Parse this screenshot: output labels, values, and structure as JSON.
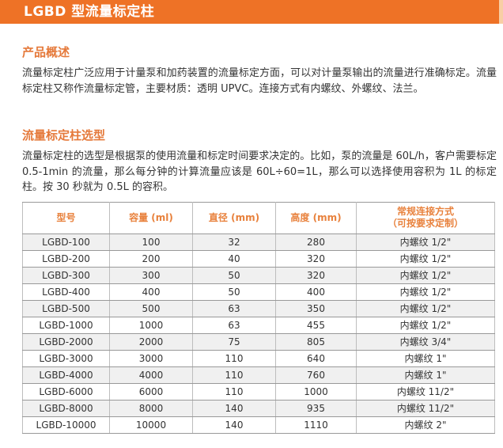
{
  "page": {
    "title": "LGBD 型流量标定柱"
  },
  "colors": {
    "accent": "#EE7226",
    "accent_light_stripe": "#F8CEA4",
    "section_heading": "#E5793A",
    "table_header_text": "#E8813C",
    "body_text": "#333333",
    "row_stripe": "#F0F0F0"
  },
  "sections": {
    "overview": {
      "heading": "产品概述",
      "body": "流量标定柱广泛应用于计量泵和加药装置的流量标定方面，可以对计量泵输出的流量进行准确标定。流量标定柱又称作流量标定管，主要材质：透明 UPVC。连接方式有内螺纹、外螺纹、法兰。"
    },
    "selection": {
      "heading": "流量标定柱选型",
      "body": "流量标定柱的选型是根据泵的使用流量和标定时间要求决定的。比如，泵的流量是 60L/h，客户需要标定 0.5-1min 的流量，那么每分钟的计算流量应该是 60L÷60=1L，那么可以选择使用容积为 1L 的标定柱。按 30 秒就为 0.5L 的容积。"
    }
  },
  "table": {
    "col_keys": [
      "model",
      "capacity_ml",
      "diameter_mm",
      "height_mm",
      "connection"
    ],
    "headers": [
      {
        "label": "型号"
      },
      {
        "label": "容量 (ml)"
      },
      {
        "label": "直径 (mm)"
      },
      {
        "label": "高度 (mm)"
      },
      {
        "label": "常规连接方式",
        "sub": "（可按要求定制）"
      }
    ],
    "rows": [
      [
        "LGBD-100",
        "100",
        "32",
        "280",
        "内螺纹 1/2\""
      ],
      [
        "LGBD-200",
        "200",
        "40",
        "320",
        "内螺纹 1/2\""
      ],
      [
        "LGBD-300",
        "300",
        "50",
        "320",
        "内螺纹 1/2\""
      ],
      [
        "LGBD-400",
        "400",
        "50",
        "400",
        "内螺纹 1/2\""
      ],
      [
        "LGBD-500",
        "500",
        "63",
        "350",
        "内螺纹 1/2\""
      ],
      [
        "LGBD-1000",
        "1000",
        "63",
        "455",
        "内螺纹 1/2\""
      ],
      [
        "LGBD-2000",
        "2000",
        "75",
        "805",
        "内螺纹 3/4\""
      ],
      [
        "LGBD-3000",
        "3000",
        "110",
        "640",
        "内螺纹 1\""
      ],
      [
        "LGBD-4000",
        "4000",
        "110",
        "760",
        "内螺纹 1\""
      ],
      [
        "LGBD-6000",
        "6000",
        "110",
        "1000",
        "内螺纹 11/2\""
      ],
      [
        "LGBD-8000",
        "8000",
        "140",
        "935",
        "内螺纹 11/2\""
      ],
      [
        "LGBD-10000",
        "10000",
        "140",
        "1110",
        "内螺纹 2\""
      ]
    ]
  }
}
